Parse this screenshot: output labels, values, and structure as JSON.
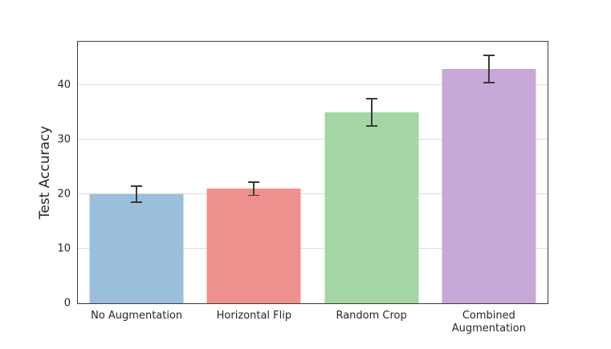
{
  "chart_data": {
    "type": "bar",
    "title": "",
    "xlabel": "",
    "ylabel": "Test Accuracy",
    "categories": [
      "No Augmentation",
      "Horizontal Flip",
      "Random Crop",
      "Combined Augmentation"
    ],
    "values": [
      20,
      21,
      35,
      43
    ],
    "errors": [
      1.5,
      1.2,
      2.5,
      2.5
    ],
    "bar_colors": [
      "#9bbedd",
      "#f0908e",
      "#a3d6a4",
      "#c8a8d8"
    ],
    "ylim": [
      0,
      48
    ],
    "yticks": [
      0,
      10,
      20,
      30,
      40
    ],
    "grid": "horizontal",
    "legend": "none",
    "error_bar_color": "#3a3a3a",
    "spine_color": "#3b3b3b",
    "gridline_color": "#dcdcdc",
    "background_color": "#ffffff"
  }
}
